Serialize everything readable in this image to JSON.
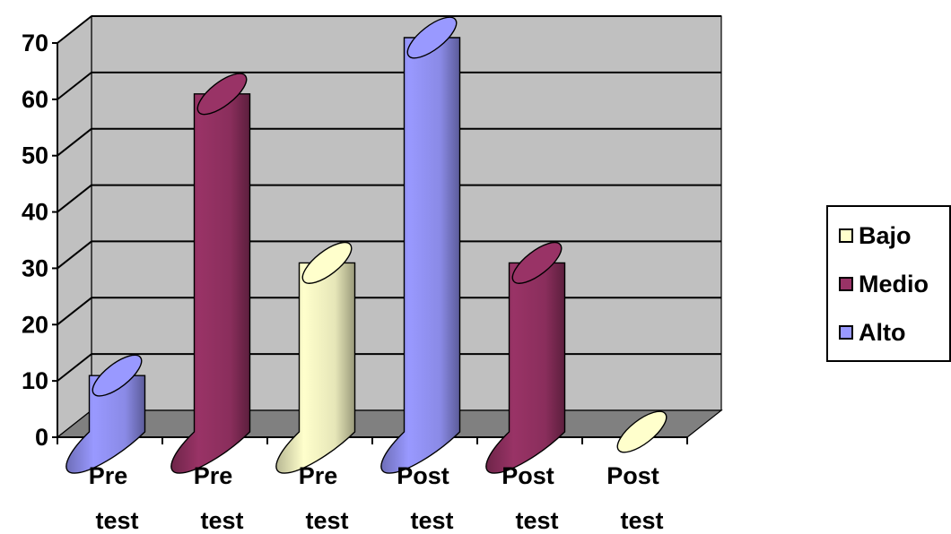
{
  "chart_data": {
    "type": "bar",
    "style": "3d-cylinder",
    "categories": [
      [
        "Pre",
        "test"
      ],
      [
        "Pre",
        "test"
      ],
      [
        "Pre",
        "test"
      ],
      [
        "Post",
        "test"
      ],
      [
        "Post",
        "test"
      ],
      [
        "Post",
        "test"
      ]
    ],
    "values": [
      10,
      60,
      30,
      70,
      30,
      0
    ],
    "point_series": [
      "Alto",
      "Medio",
      "Bajo",
      "Alto",
      "Medio",
      "Bajo"
    ],
    "ylim": [
      0,
      70
    ],
    "yticks": [
      0,
      10,
      20,
      30,
      40,
      50,
      60,
      70
    ],
    "grid": true,
    "legend_position": "right",
    "legend": [
      {
        "name": "Bajo",
        "color": "#ffffcc"
      },
      {
        "name": "Medio",
        "color": "#993366"
      },
      {
        "name": "Alto",
        "color": "#9999ff"
      }
    ],
    "wall_color": "#c0c0c0",
    "floor_color": "#808080"
  }
}
